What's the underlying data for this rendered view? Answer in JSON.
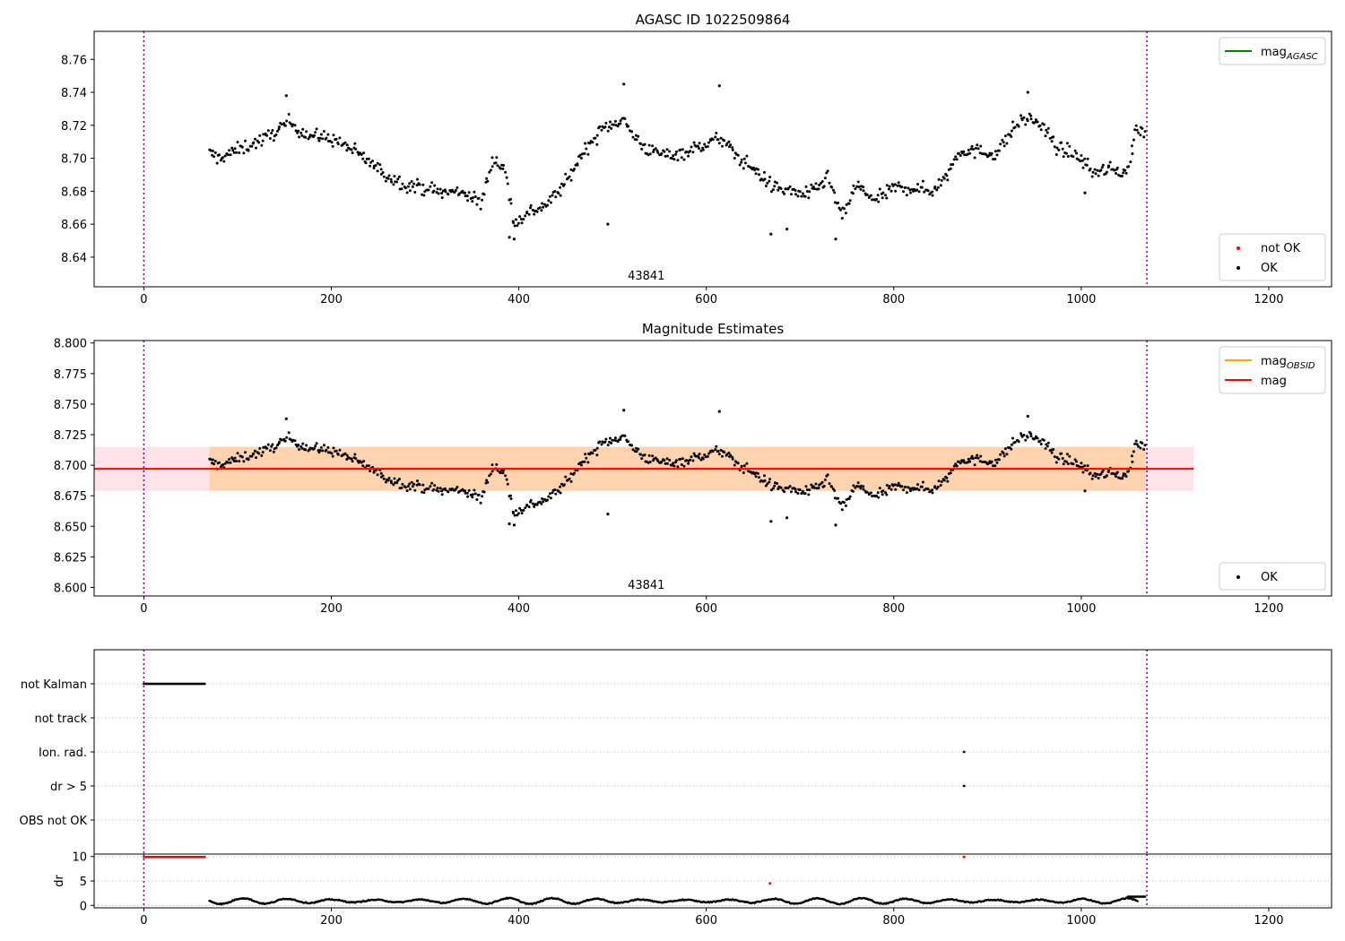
{
  "chart_data": [
    {
      "type": "scatter",
      "title": "AGASC ID 1022509864",
      "annotation": "43841",
      "x_range": [
        -53,
        1267
      ],
      "y_range": [
        8.622,
        8.777
      ],
      "x_ticks": [
        0,
        200,
        400,
        600,
        800,
        1000,
        1200
      ],
      "y_ticks": [
        8.64,
        8.66,
        8.68,
        8.7,
        8.72,
        8.74,
        8.76
      ],
      "y_tick_format": 2,
      "grid": false,
      "vlines": [
        0,
        1070
      ],
      "legends": [
        {
          "position": "top-right",
          "entries": [
            {
              "label": "mag",
              "sub": "AGASC",
              "color": "#008000",
              "kind": "line"
            }
          ]
        },
        {
          "position": "bottom-right",
          "entries": [
            {
              "label": "not OK",
              "color": "#ff0000",
              "kind": "dot"
            },
            {
              "label": "OK",
              "color": "#000000",
              "kind": "dot"
            }
          ]
        }
      ],
      "series": [
        {
          "name": "OK",
          "color": "#000000",
          "x_start": 70,
          "x_end": 1068,
          "count": 760,
          "trend_x": [
            70,
            80,
            100,
            130,
            155,
            175,
            200,
            220,
            240,
            260,
            280,
            300,
            320,
            340,
            360,
            372,
            385,
            395,
            410,
            430,
            450,
            470,
            490,
            510,
            525,
            540,
            560,
            580,
            600,
            615,
            635,
            650,
            670,
            690,
            710,
            730,
            745,
            760,
            780,
            800,
            820,
            840,
            855,
            870,
            890,
            910,
            930,
            945,
            960,
            975,
            990,
            1000,
            1010,
            1030,
            1050,
            1058,
            1068
          ],
          "trend_y": [
            8.703,
            8.7,
            8.705,
            8.712,
            8.722,
            8.714,
            8.712,
            8.706,
            8.698,
            8.689,
            8.684,
            8.682,
            8.679,
            8.68,
            8.672,
            8.7,
            8.694,
            8.66,
            8.667,
            8.672,
            8.685,
            8.705,
            8.718,
            8.724,
            8.712,
            8.704,
            8.702,
            8.704,
            8.709,
            8.712,
            8.7,
            8.694,
            8.683,
            8.68,
            8.678,
            8.688,
            8.664,
            8.684,
            8.674,
            8.682,
            8.682,
            8.68,
            8.688,
            8.705,
            8.704,
            8.703,
            8.72,
            8.725,
            8.718,
            8.706,
            8.703,
            8.7,
            8.692,
            8.693,
            8.692,
            8.718,
            8.714
          ],
          "noise": 0.0045
        }
      ],
      "outliers": [
        [
          512,
          8.745
        ],
        [
          495,
          8.66
        ],
        [
          614,
          8.744
        ],
        [
          669,
          8.654
        ],
        [
          943,
          8.74
        ],
        [
          152,
          8.738
        ],
        [
          738,
          8.651
        ],
        [
          390,
          8.652
        ],
        [
          395,
          8.651
        ],
        [
          686,
          8.657
        ],
        [
          1004,
          8.679
        ]
      ]
    },
    {
      "type": "scatter",
      "title": "Magnitude Estimates",
      "annotation": "43841",
      "x_range": [
        -53,
        1267
      ],
      "y_range": [
        8.593,
        8.802
      ],
      "x_ticks": [
        0,
        200,
        400,
        600,
        800,
        1000,
        1200
      ],
      "y_ticks": [
        8.6,
        8.625,
        8.65,
        8.675,
        8.7,
        8.725,
        8.75,
        8.775,
        8.8
      ],
      "y_tick_format": 3,
      "grid": false,
      "vlines": [
        0,
        1070
      ],
      "bands": [
        {
          "x": [
            -53,
            1120
          ],
          "y": [
            8.679,
            8.715
          ],
          "color": "#ffc0cb",
          "opacity": 0.45
        },
        {
          "x": [
            70,
            1068
          ],
          "y": [
            8.679,
            8.715
          ],
          "color": "#ffa500",
          "opacity": 0.25
        }
      ],
      "lines": [
        {
          "name": "mag",
          "sub": "OBSID",
          "x": [
            70,
            1068
          ],
          "y": 8.697,
          "color": "#ffa500"
        },
        {
          "name": "mag",
          "x": [
            -53,
            1120
          ],
          "y": 8.697,
          "color": "#ff0000"
        }
      ],
      "legends": [
        {
          "position": "top-right",
          "entries": [
            {
              "label": "mag",
              "sub": "OBSID",
              "color": "#ffa500",
              "kind": "line"
            },
            {
              "label": "mag",
              "color": "#ff0000",
              "kind": "line"
            }
          ]
        },
        {
          "position": "bottom-right",
          "entries": [
            {
              "label": "OK",
              "color": "#000000",
              "kind": "dot"
            }
          ]
        }
      ],
      "series_same_as_panel": 0
    },
    {
      "type": "scatter",
      "title": "",
      "x_range": [
        -53,
        1267
      ],
      "categories": [
        "not Kalman",
        "not track",
        "Ion. rad.",
        "dr > 5",
        "OBS not OK"
      ],
      "grid": "dotted horizontal",
      "vlines": [
        0,
        1070
      ],
      "flags": [
        {
          "category": "not Kalman",
          "x_start": 0,
          "x_end": 65,
          "count": 80,
          "color": "#000000"
        },
        {
          "category": "Ion. rad.",
          "x": [
            875
          ],
          "color": "#000000"
        },
        {
          "category": "dr > 5",
          "x": [
            875
          ],
          "color": "#000000"
        }
      ]
    },
    {
      "type": "scatter",
      "title": "",
      "ylabel": "dr",
      "x_range": [
        -53,
        1267
      ],
      "y_range": [
        -0.5,
        10.5
      ],
      "x_ticks": [
        0,
        200,
        400,
        600,
        800,
        1000,
        1200
      ],
      "y_ticks": [
        0,
        5,
        10
      ],
      "y_tick_format": 0,
      "grid": "dotted horizontal",
      "vlines": [
        0,
        1070
      ],
      "series": [
        {
          "name": "not OK",
          "color": "#ff0000",
          "x_start": 0,
          "x_end": 65,
          "count": 80,
          "y": 9.9
        },
        {
          "name": "not OK",
          "color": "#ff0000",
          "points": [
            [
              668,
              4.5
            ],
            [
              875,
              9.9
            ]
          ]
        },
        {
          "name": "OK",
          "color": "#000000",
          "x_start": 70,
          "x_end": 1060,
          "count": 760,
          "wave_mean": 0.9,
          "wave_amp": 0.6
        },
        {
          "name": "OK",
          "color": "#000000",
          "x_start": 1050,
          "x_end": 1068,
          "count": 20,
          "y": 1.8
        }
      ]
    }
  ]
}
